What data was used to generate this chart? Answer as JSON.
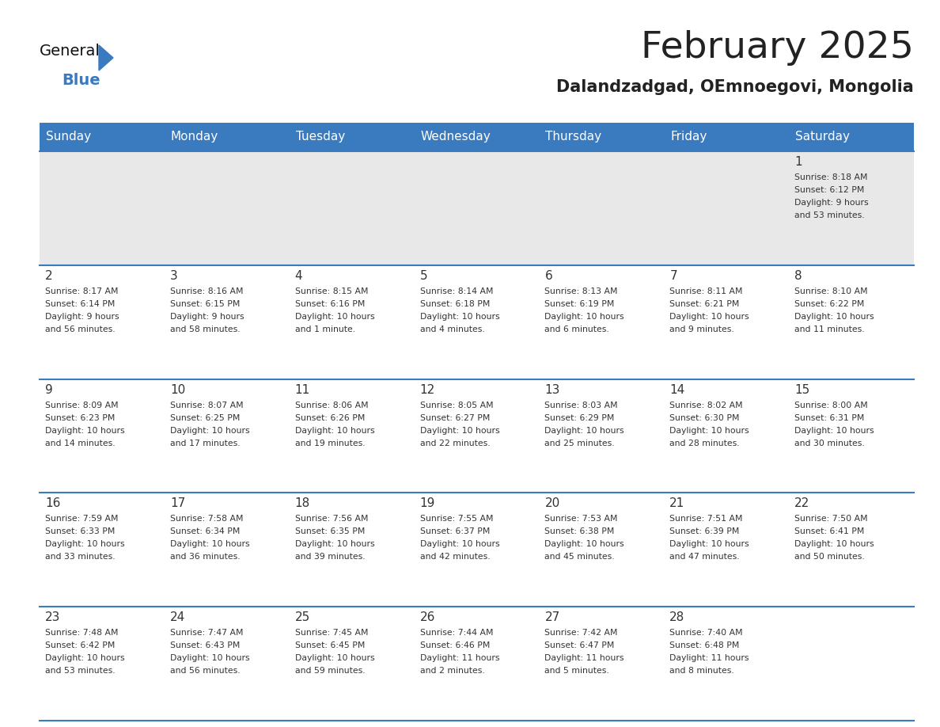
{
  "title": "February 2025",
  "subtitle": "Dalandzadgad, OEmnoegovi, Mongolia",
  "header_color": "#3a7abf",
  "header_text_color": "#ffffff",
  "border_color": "#3a7abf",
  "text_color": "#333333",
  "row1_bg": "#e8e8e8",
  "row_bg": "#ffffff",
  "days_of_week": [
    "Sunday",
    "Monday",
    "Tuesday",
    "Wednesday",
    "Thursday",
    "Friday",
    "Saturday"
  ],
  "calendar_data": [
    [
      null,
      null,
      null,
      null,
      null,
      null,
      {
        "day": "1",
        "sunrise": "8:18 AM",
        "sunset": "6:12 PM",
        "daylight": "9 hours\nand 53 minutes."
      }
    ],
    [
      {
        "day": "2",
        "sunrise": "8:17 AM",
        "sunset": "6:14 PM",
        "daylight": "9 hours\nand 56 minutes."
      },
      {
        "day": "3",
        "sunrise": "8:16 AM",
        "sunset": "6:15 PM",
        "daylight": "9 hours\nand 58 minutes."
      },
      {
        "day": "4",
        "sunrise": "8:15 AM",
        "sunset": "6:16 PM",
        "daylight": "10 hours\nand 1 minute."
      },
      {
        "day": "5",
        "sunrise": "8:14 AM",
        "sunset": "6:18 PM",
        "daylight": "10 hours\nand 4 minutes."
      },
      {
        "day": "6",
        "sunrise": "8:13 AM",
        "sunset": "6:19 PM",
        "daylight": "10 hours\nand 6 minutes."
      },
      {
        "day": "7",
        "sunrise": "8:11 AM",
        "sunset": "6:21 PM",
        "daylight": "10 hours\nand 9 minutes."
      },
      {
        "day": "8",
        "sunrise": "8:10 AM",
        "sunset": "6:22 PM",
        "daylight": "10 hours\nand 11 minutes."
      }
    ],
    [
      {
        "day": "9",
        "sunrise": "8:09 AM",
        "sunset": "6:23 PM",
        "daylight": "10 hours\nand 14 minutes."
      },
      {
        "day": "10",
        "sunrise": "8:07 AM",
        "sunset": "6:25 PM",
        "daylight": "10 hours\nand 17 minutes."
      },
      {
        "day": "11",
        "sunrise": "8:06 AM",
        "sunset": "6:26 PM",
        "daylight": "10 hours\nand 19 minutes."
      },
      {
        "day": "12",
        "sunrise": "8:05 AM",
        "sunset": "6:27 PM",
        "daylight": "10 hours\nand 22 minutes."
      },
      {
        "day": "13",
        "sunrise": "8:03 AM",
        "sunset": "6:29 PM",
        "daylight": "10 hours\nand 25 minutes."
      },
      {
        "day": "14",
        "sunrise": "8:02 AM",
        "sunset": "6:30 PM",
        "daylight": "10 hours\nand 28 minutes."
      },
      {
        "day": "15",
        "sunrise": "8:00 AM",
        "sunset": "6:31 PM",
        "daylight": "10 hours\nand 30 minutes."
      }
    ],
    [
      {
        "day": "16",
        "sunrise": "7:59 AM",
        "sunset": "6:33 PM",
        "daylight": "10 hours\nand 33 minutes."
      },
      {
        "day": "17",
        "sunrise": "7:58 AM",
        "sunset": "6:34 PM",
        "daylight": "10 hours\nand 36 minutes."
      },
      {
        "day": "18",
        "sunrise": "7:56 AM",
        "sunset": "6:35 PM",
        "daylight": "10 hours\nand 39 minutes."
      },
      {
        "day": "19",
        "sunrise": "7:55 AM",
        "sunset": "6:37 PM",
        "daylight": "10 hours\nand 42 minutes."
      },
      {
        "day": "20",
        "sunrise": "7:53 AM",
        "sunset": "6:38 PM",
        "daylight": "10 hours\nand 45 minutes."
      },
      {
        "day": "21",
        "sunrise": "7:51 AM",
        "sunset": "6:39 PM",
        "daylight": "10 hours\nand 47 minutes."
      },
      {
        "day": "22",
        "sunrise": "7:50 AM",
        "sunset": "6:41 PM",
        "daylight": "10 hours\nand 50 minutes."
      }
    ],
    [
      {
        "day": "23",
        "sunrise": "7:48 AM",
        "sunset": "6:42 PM",
        "daylight": "10 hours\nand 53 minutes."
      },
      {
        "day": "24",
        "sunrise": "7:47 AM",
        "sunset": "6:43 PM",
        "daylight": "10 hours\nand 56 minutes."
      },
      {
        "day": "25",
        "sunrise": "7:45 AM",
        "sunset": "6:45 PM",
        "daylight": "10 hours\nand 59 minutes."
      },
      {
        "day": "26",
        "sunrise": "7:44 AM",
        "sunset": "6:46 PM",
        "daylight": "11 hours\nand 2 minutes."
      },
      {
        "day": "27",
        "sunrise": "7:42 AM",
        "sunset": "6:47 PM",
        "daylight": "11 hours\nand 5 minutes."
      },
      {
        "day": "28",
        "sunrise": "7:40 AM",
        "sunset": "6:48 PM",
        "daylight": "11 hours\nand 8 minutes."
      },
      null
    ]
  ]
}
